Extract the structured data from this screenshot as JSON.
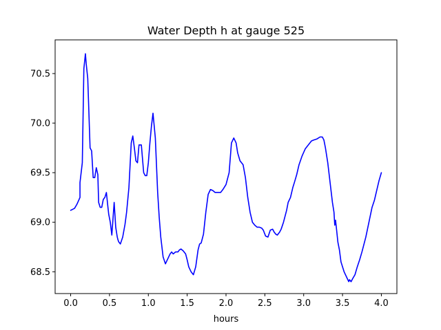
{
  "chart_data": {
    "type": "line",
    "title": "Water Depth h at gauge 525",
    "xlabel": "hours",
    "ylabel": "",
    "xlim": [
      -0.2,
      4.2
    ],
    "ylim": [
      68.28,
      70.84
    ],
    "x_ticks": [
      0.0,
      0.5,
      1.0,
      1.5,
      2.0,
      2.5,
      3.0,
      3.5,
      4.0
    ],
    "x_tick_labels": [
      "0.0",
      "0.5",
      "1.0",
      "1.5",
      "2.0",
      "2.5",
      "3.0",
      "3.5",
      "4.0"
    ],
    "y_ticks": [
      68.5,
      69.0,
      69.5,
      70.0,
      70.5
    ],
    "y_tick_labels": [
      "68.5",
      "69.0",
      "69.5",
      "70.0",
      "70.5"
    ],
    "grid": false,
    "legend": "none",
    "series": [
      {
        "color": "#0000ff",
        "x": [
          0.0,
          0.05,
          0.08,
          0.12,
          0.12,
          0.15,
          0.17,
          0.19,
          0.2,
          0.22,
          0.25,
          0.27,
          0.29,
          0.31,
          0.33,
          0.35,
          0.36,
          0.38,
          0.4,
          0.42,
          0.44,
          0.46,
          0.48,
          0.49,
          0.51,
          0.53,
          0.56,
          0.58,
          0.6,
          0.61,
          0.62,
          0.64,
          0.67,
          0.7,
          0.72,
          0.75,
          0.78,
          0.8,
          0.82,
          0.84,
          0.86,
          0.88,
          0.91,
          0.94,
          0.96,
          0.98,
          1.0,
          1.02,
          1.04,
          1.06,
          1.09,
          1.12,
          1.14,
          1.16,
          1.19,
          1.22,
          1.25,
          1.28,
          1.3,
          1.32,
          1.35,
          1.38,
          1.4,
          1.42,
          1.45,
          1.48,
          1.5,
          1.52,
          1.55,
          1.58,
          1.61,
          1.64,
          1.66,
          1.68,
          1.71,
          1.74,
          1.77,
          1.8,
          1.83,
          1.86,
          1.89,
          1.93,
          1.96,
          2.0,
          2.04,
          2.07,
          2.1,
          2.13,
          2.15,
          2.18,
          2.2,
          2.22,
          2.25,
          2.28,
          2.31,
          2.34,
          2.37,
          2.4,
          2.43,
          2.46,
          2.48,
          2.51,
          2.54,
          2.57,
          2.6,
          2.62,
          2.64,
          2.66,
          2.69,
          2.71,
          2.74,
          2.78,
          2.8,
          2.83,
          2.86,
          2.88,
          2.91,
          2.94,
          2.98,
          3.02,
          3.06,
          3.1,
          3.13,
          3.17,
          3.21,
          3.24,
          3.26,
          3.28,
          3.31,
          3.34,
          3.37,
          3.39,
          3.4,
          3.41,
          3.42,
          3.44,
          3.46,
          3.48,
          3.52,
          3.55,
          3.58,
          3.59,
          3.61,
          3.63,
          3.66,
          3.69,
          3.72,
          3.75,
          3.8,
          3.84,
          3.88,
          3.91,
          3.94,
          3.97,
          4.0
        ],
        "y": [
          69.12,
          69.14,
          69.18,
          69.25,
          69.4,
          69.6,
          70.55,
          70.7,
          70.6,
          70.45,
          69.75,
          69.72,
          69.45,
          69.45,
          69.55,
          69.48,
          69.2,
          69.15,
          69.15,
          69.23,
          69.25,
          69.3,
          69.15,
          69.08,
          69.0,
          68.87,
          69.2,
          68.95,
          68.85,
          68.82,
          68.8,
          68.78,
          68.85,
          68.98,
          69.1,
          69.35,
          69.8,
          69.87,
          69.75,
          69.62,
          69.6,
          69.78,
          69.78,
          69.5,
          69.47,
          69.47,
          69.6,
          69.8,
          69.97,
          70.1,
          69.85,
          69.3,
          69.05,
          68.85,
          68.65,
          68.58,
          68.63,
          68.68,
          68.7,
          68.68,
          68.7,
          68.7,
          68.72,
          68.73,
          68.71,
          68.68,
          68.62,
          68.55,
          68.5,
          68.47,
          68.55,
          68.72,
          68.78,
          68.79,
          68.88,
          69.1,
          69.28,
          69.33,
          69.32,
          69.3,
          69.3,
          69.3,
          69.33,
          69.38,
          69.5,
          69.8,
          69.85,
          69.8,
          69.7,
          69.62,
          69.6,
          69.58,
          69.45,
          69.25,
          69.1,
          69.0,
          68.97,
          68.95,
          68.95,
          68.94,
          68.92,
          68.86,
          68.85,
          68.92,
          68.93,
          68.9,
          68.88,
          68.87,
          68.9,
          68.93,
          69.0,
          69.12,
          69.2,
          69.25,
          69.35,
          69.4,
          69.48,
          69.58,
          69.67,
          69.74,
          69.78,
          69.82,
          69.83,
          69.84,
          69.86,
          69.86,
          69.83,
          69.75,
          69.6,
          69.4,
          69.2,
          69.1,
          68.97,
          69.02,
          68.95,
          68.8,
          68.72,
          68.6,
          68.5,
          68.45,
          68.4,
          68.42,
          68.4,
          68.43,
          68.47,
          68.55,
          68.62,
          68.7,
          68.85,
          69.0,
          69.15,
          69.22,
          69.32,
          69.42,
          69.5
        ]
      }
    ]
  }
}
